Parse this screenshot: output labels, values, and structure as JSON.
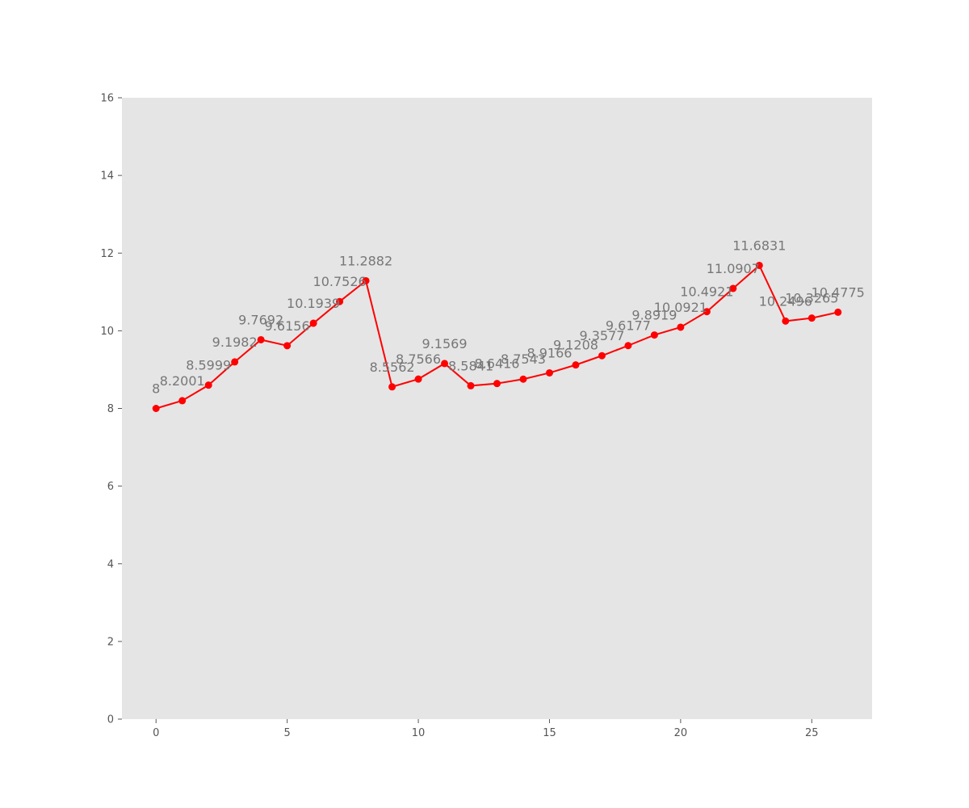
{
  "chart_data": {
    "type": "line",
    "title": "",
    "xlabel": "",
    "ylabel": "",
    "x": [
      0,
      1,
      2,
      3,
      4,
      5,
      6,
      7,
      8,
      9,
      10,
      11,
      12,
      13,
      14,
      15,
      16,
      17,
      18,
      19,
      20,
      21,
      22,
      23,
      24,
      25,
      26
    ],
    "series": [
      {
        "values": [
          8,
          8.2001,
          8.5999,
          9.1982,
          9.7692,
          9.6156,
          10.1939,
          10.7526,
          11.2882,
          8.5562,
          8.7566,
          9.1569,
          8.5841,
          8.6416,
          8.7543,
          8.9166,
          9.1208,
          9.3577,
          9.6177,
          9.8919,
          10.0921,
          10.4921,
          11.0907,
          11.6831,
          10.2496,
          10.3265,
          10.4775
        ],
        "labels": [
          "8",
          "8.2001",
          "8.5999",
          "9.1982",
          "9.7692",
          "9.6156",
          "10.1939",
          "10.7526",
          "11.2882",
          "8.5562",
          "8.7566",
          "9.1569",
          "8.5841",
          "8.6416",
          "8.7543",
          "8.9166",
          "9.1208",
          "9.3577",
          "9.6177",
          "9.8919",
          "10.0921",
          "10.4921",
          "11.0907",
          "11.6831",
          "10.2496",
          "10.3265",
          "10.4775"
        ],
        "color": "#ff0000"
      }
    ],
    "xlim": [
      -1.3,
      27.3
    ],
    "ylim": [
      0,
      16
    ],
    "xticks": [
      0,
      5,
      10,
      15,
      20,
      25
    ],
    "yticks": [
      0,
      2,
      4,
      6,
      8,
      10,
      12,
      14,
      16
    ],
    "grid": false,
    "legend": "none",
    "background": "#e5e5e5",
    "label_color": "#777777"
  }
}
